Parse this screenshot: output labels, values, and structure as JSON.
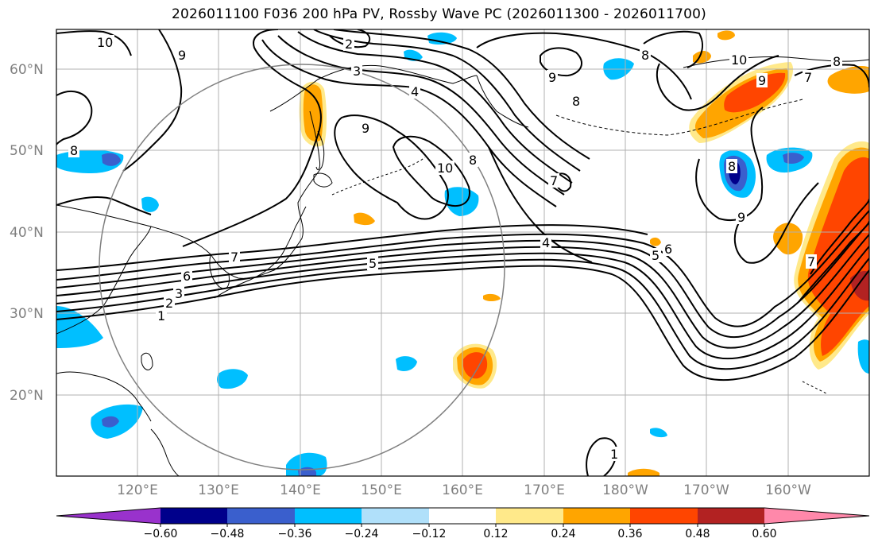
{
  "title": "2026011100 F036 200 hPa PV, Rossby Wave PC (2026011300 - 2026011700)",
  "map": {
    "lon_range_deg_east": [
      110,
      210
    ],
    "lat_range_deg_north": [
      10,
      65
    ],
    "lat_ticks": [
      "60°N",
      "50°N",
      "40°N",
      "30°N",
      "20°N"
    ],
    "lon_ticks": [
      "120°E",
      "130°E",
      "140°E",
      "150°E",
      "160°E",
      "170°E",
      "180°W",
      "170°W",
      "160°W"
    ],
    "gridlines": true,
    "coastlines": true
  },
  "contour_labels": [
    "10",
    "9",
    "2",
    "3",
    "4",
    "9",
    "10",
    "8",
    "9",
    "8",
    "10",
    "9",
    "8",
    "7",
    "8",
    "9",
    "8",
    "7",
    "6",
    "5",
    "4",
    "5",
    "6",
    "7",
    "1",
    "2",
    "3",
    "1",
    "8",
    "7"
  ],
  "colorbar": {
    "tick_labels": [
      "−0.60",
      "−0.48",
      "−0.36",
      "−0.24",
      "−0.12",
      "0.12",
      "0.24",
      "0.36",
      "0.48",
      "0.60"
    ],
    "colors": [
      "#9932cc",
      "#00008b",
      "#3a5fcd",
      "#00bfff",
      "#b0e0fa",
      "#ffffff",
      "#ffe98a",
      "#ffa500",
      "#ff4500",
      "#b22222",
      "#ff88aa"
    ]
  },
  "range_circle_color": "#808080",
  "contour_color": "#000000"
}
